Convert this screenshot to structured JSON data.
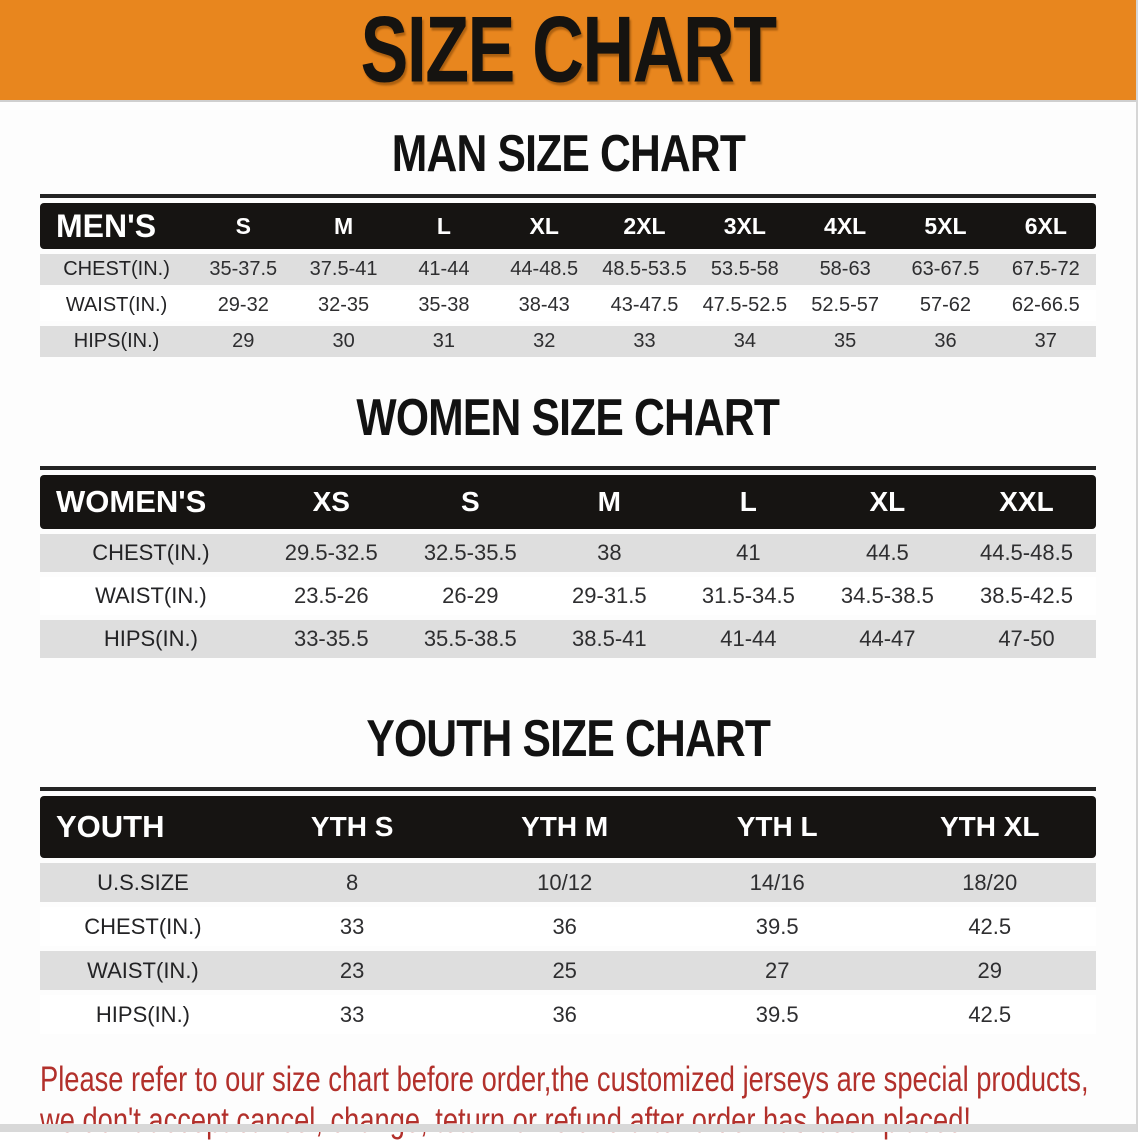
{
  "banner": {
    "title": "SIZE CHART"
  },
  "sections": {
    "men": {
      "title": "MAN SIZE CHART"
    },
    "women": {
      "title": "WOMEN SIZE CHART"
    },
    "youth": {
      "title": "YOUTH SIZE CHART"
    }
  },
  "tables": {
    "men": {
      "header": [
        "MEN'S",
        "S",
        "M",
        "L",
        "XL",
        "2XL",
        "3XL",
        "4XL",
        "5XL",
        "6XL"
      ],
      "rows": [
        [
          "CHEST(IN.)",
          "35-37.5",
          "37.5-41",
          "41-44",
          "44-48.5",
          "48.5-53.5",
          "53.5-58",
          "58-63",
          "63-67.5",
          "67.5-72"
        ],
        [
          "WAIST(IN.)",
          "29-32",
          "32-35",
          "35-38",
          "38-43",
          "43-47.5",
          "47.5-52.5",
          "52.5-57",
          "57-62",
          "62-66.5"
        ],
        [
          "HIPS(IN.)",
          "29",
          "30",
          "31",
          "32",
          "33",
          "34",
          "35",
          "36",
          "37"
        ]
      ]
    },
    "women": {
      "header": [
        "WOMEN'S",
        "XS",
        "S",
        "M",
        "L",
        "XL",
        "XXL"
      ],
      "rows": [
        [
          "CHEST(IN.)",
          "29.5-32.5",
          "32.5-35.5",
          "38",
          "41",
          "44.5",
          "44.5-48.5"
        ],
        [
          "WAIST(IN.)",
          "23.5-26",
          "26-29",
          "29-31.5",
          "31.5-34.5",
          "34.5-38.5",
          "38.5-42.5"
        ],
        [
          "HIPS(IN.)",
          "33-35.5",
          "35.5-38.5",
          "38.5-41",
          "41-44",
          "44-47",
          "47-50"
        ]
      ]
    },
    "youth": {
      "header": [
        "YOUTH",
        "YTH S",
        "YTH M",
        "YTH L",
        "YTH XL"
      ],
      "rows": [
        [
          "U.S.SIZE",
          "8",
          "10/12",
          "14/16",
          "18/20"
        ],
        [
          "CHEST(IN.)",
          "33",
          "36",
          "39.5",
          "42.5"
        ],
        [
          "WAIST(IN.)",
          "23",
          "25",
          "27",
          "29"
        ],
        [
          "HIPS(IN.)",
          "33",
          "36",
          "39.5",
          "42.5"
        ]
      ]
    }
  },
  "footnote": {
    "line1": "Please refer to our size chart before order,the customized jerseys are special products,",
    "line2": "we don't accept cancel, change, teturn or refund after order has been placed!"
  },
  "colors": {
    "banner_orange": "#E8861E",
    "header_black": "#161412",
    "row_gray": "#DEDEDE",
    "note_red": "#B2302B",
    "strip_gray": "#D8D8D8"
  }
}
